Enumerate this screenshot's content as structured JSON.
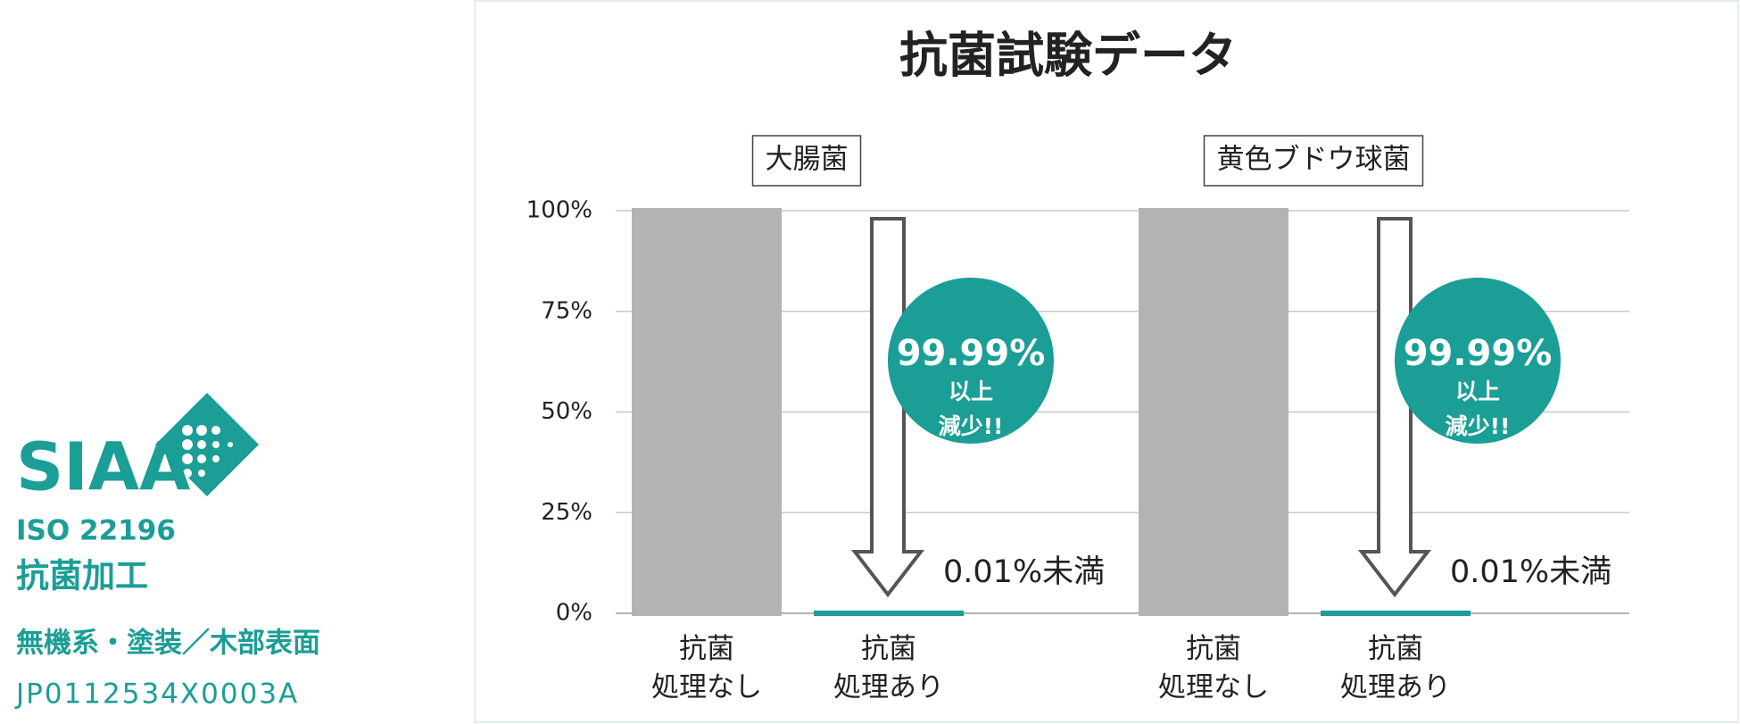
{
  "title": "抗菌試験データ",
  "certification": {
    "logo": "SIAA",
    "standard": "ISO 22196",
    "treatment": "抗菌加工",
    "material": "無機系・塗装／木部表面",
    "number": "JP0112534X0003A"
  },
  "chart_data": [
    {
      "type": "bar",
      "subtitle": "大腸菌",
      "categories": [
        [
          "抗菌",
          "処理なし"
        ],
        [
          "抗菌",
          "処理あり"
        ]
      ],
      "values": [
        100,
        0.01
      ],
      "value_labels": [
        null,
        "0.01%未満"
      ],
      "colors": [
        "#b3b3b3",
        "#1a9e96"
      ],
      "annotation": [
        "99.99%",
        "以上",
        "減少!!"
      ],
      "annotation_color": "#1a9e96",
      "ylim": [
        0,
        100
      ],
      "yticks": [
        {
          "value": 0,
          "label": "0%"
        },
        {
          "value": 25,
          "label": "25%"
        },
        {
          "value": 50,
          "label": "50%"
        },
        {
          "value": 75,
          "label": "75%"
        },
        {
          "value": 100,
          "label": "100%"
        }
      ],
      "grid": true
    },
    {
      "type": "bar",
      "subtitle": "黄色ブドウ球菌",
      "categories": [
        [
          "抗菌",
          "処理なし"
        ],
        [
          "抗菌",
          "処理あり"
        ]
      ],
      "values": [
        100,
        0.01
      ],
      "value_labels": [
        null,
        "0.01%未満"
      ],
      "colors": [
        "#b3b3b3",
        "#1a9e96"
      ],
      "annotation": [
        "99.99%",
        "以上",
        "減少!!"
      ],
      "annotation_color": "#1a9e96",
      "ylim": [
        0,
        100
      ],
      "yticks": [
        0,
        25,
        50,
        75,
        100
      ],
      "y_tick_labels": false,
      "grid": true
    }
  ]
}
